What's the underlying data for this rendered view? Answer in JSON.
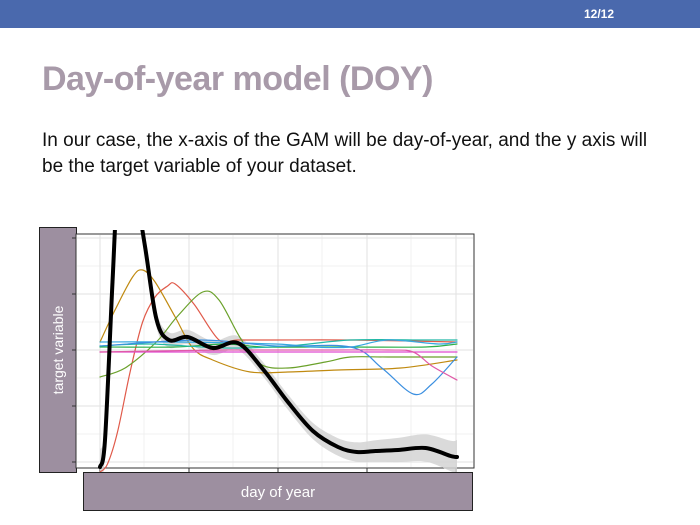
{
  "header": {
    "page_number": "12/12",
    "accent_color": "#4a69ad"
  },
  "slide": {
    "title": "Day-of-year model (DOY)",
    "body": "In our case, the x-axis of the GAM will be day-of-year, and the y axis will be the target variable of your dataset."
  },
  "chart_data": {
    "type": "line",
    "xlabel": "day of year",
    "ylabel": "target variable",
    "grid": true,
    "tick_labels_visible": false,
    "series": [
      {
        "color": "#000000",
        "style": "bold-with-ci-band",
        "points": [
          [
            0,
            115
          ],
          [
            4,
            88
          ],
          [
            10,
            -70
          ],
          [
            14,
            -163
          ],
          [
            20,
            -193
          ],
          [
            26,
            -180
          ],
          [
            36,
            -105
          ],
          [
            45,
            -33
          ],
          [
            55,
            -12
          ],
          [
            70,
            -15
          ],
          [
            90,
            -4
          ],
          [
            110,
            -9
          ],
          [
            130,
            17
          ],
          [
            150,
            50
          ],
          [
            170,
            79
          ],
          [
            190,
            95
          ],
          [
            205,
            100
          ],
          [
            220,
            99
          ],
          [
            238,
            98
          ],
          [
            260,
            96
          ],
          [
            280,
            104
          ],
          [
            285,
            105
          ]
        ]
      },
      {
        "color": "#e05a4a",
        "points": [
          [
            0,
            120
          ],
          [
            6,
            112
          ],
          [
            14,
            80
          ],
          [
            24,
            20
          ],
          [
            34,
            -30
          ],
          [
            44,
            -55
          ],
          [
            54,
            -66
          ],
          [
            60,
            -68
          ],
          [
            75,
            -48
          ],
          [
            95,
            -12
          ],
          [
            110,
            -12
          ],
          [
            140,
            -12
          ],
          [
            200,
            -12
          ],
          [
            285,
            -10
          ]
        ]
      },
      {
        "color": "#c08a10",
        "points": [
          [
            0,
            -10
          ],
          [
            12,
            -42
          ],
          [
            26,
            -75
          ],
          [
            34,
            -82
          ],
          [
            44,
            -70
          ],
          [
            60,
            -35
          ],
          [
            74,
            -4
          ],
          [
            90,
            8
          ],
          [
            120,
            20
          ],
          [
            150,
            20
          ],
          [
            190,
            18
          ],
          [
            240,
            16
          ],
          [
            285,
            8
          ]
        ]
      },
      {
        "color": "#6aa12a",
        "points": [
          [
            0,
            25
          ],
          [
            20,
            16
          ],
          [
            45,
            -10
          ],
          [
            62,
            -36
          ],
          [
            82,
            -60
          ],
          [
            95,
            -52
          ],
          [
            112,
            -14
          ],
          [
            128,
            12
          ],
          [
            150,
            16
          ],
          [
            180,
            10
          ],
          [
            200,
            5
          ],
          [
            230,
            5
          ],
          [
            285,
            5
          ]
        ]
      },
      {
        "color": "#2db04a",
        "points": [
          [
            0,
            -5
          ],
          [
            60,
            -5
          ],
          [
            100,
            -8
          ],
          [
            130,
            -5
          ],
          [
            170,
            -5
          ],
          [
            200,
            -5
          ],
          [
            260,
            -5
          ],
          [
            285,
            -8
          ]
        ]
      },
      {
        "color": "#22b8a6",
        "points": [
          [
            0,
            -6
          ],
          [
            40,
            -8
          ],
          [
            100,
            -4
          ],
          [
            150,
            -6
          ],
          [
            200,
            -12
          ],
          [
            260,
            -12
          ],
          [
            285,
            -12
          ]
        ]
      },
      {
        "color": "#35a8e0",
        "points": [
          [
            0,
            -10
          ],
          [
            60,
            -10
          ],
          [
            140,
            -8
          ],
          [
            170,
            -5
          ],
          [
            200,
            -5
          ],
          [
            230,
            -12
          ],
          [
            270,
            -8
          ],
          [
            285,
            -10
          ]
        ]
      },
      {
        "color": "#3b8fe0",
        "points": [
          [
            0,
            -6
          ],
          [
            80,
            -12
          ],
          [
            140,
            -6
          ],
          [
            200,
            -5
          ],
          [
            225,
            16
          ],
          [
            250,
            42
          ],
          [
            265,
            32
          ],
          [
            285,
            5
          ]
        ]
      },
      {
        "color": "#e04ad0",
        "points": [
          [
            0,
            0
          ],
          [
            60,
            0
          ],
          [
            110,
            0
          ],
          [
            150,
            0
          ],
          [
            200,
            0
          ],
          [
            250,
            0
          ],
          [
            285,
            0
          ]
        ]
      },
      {
        "color": "#e05aa8",
        "points": [
          [
            0,
            0
          ],
          [
            100,
            -2
          ],
          [
            180,
            -2
          ],
          [
            230,
            -2
          ],
          [
            250,
            0
          ],
          [
            265,
            14
          ],
          [
            285,
            28
          ]
        ]
      }
    ]
  }
}
